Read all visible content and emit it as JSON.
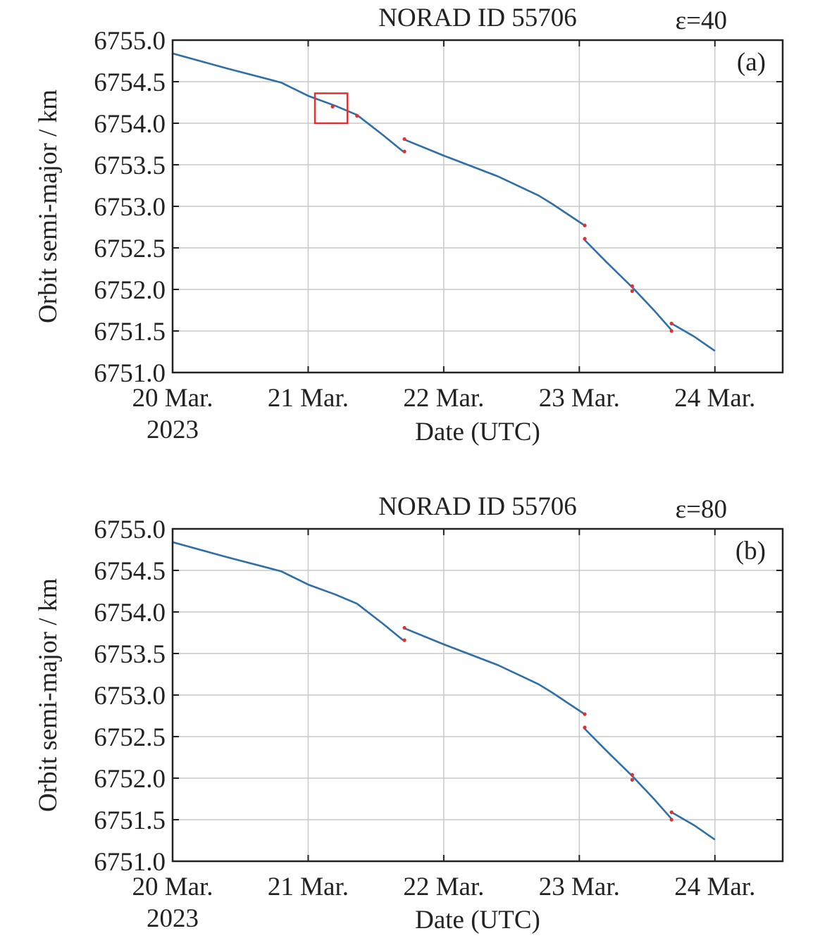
{
  "colors": {
    "series": "#2f6fa7",
    "anomaly": "#e03030",
    "highlight_box": "#e03030",
    "grid": "#c8c8c8",
    "frame": "#222222"
  },
  "chart_data": [
    {
      "type": "line",
      "panel_label": "(a)",
      "title": "NORAD ID 55706",
      "parameter_label": "ε=40",
      "xlabel": "Date (UTC)",
      "ylabel": "Orbit semi-major / km",
      "x_tick_labels": [
        {
          "line1": "20 Mar.",
          "line2": "2023"
        },
        {
          "line1": "21 Mar.",
          "line2": ""
        },
        {
          "line1": "22 Mar.",
          "line2": ""
        },
        {
          "line1": "23 Mar.",
          "line2": ""
        },
        {
          "line1": "24 Mar.",
          "line2": ""
        }
      ],
      "x_ticks_days": [
        0,
        1,
        2,
        3,
        4
      ],
      "xlim_days": [
        0,
        4.5
      ],
      "y_tick_labels": [
        "6751.0",
        "6751.5",
        "6752.0",
        "6752.5",
        "6753.0",
        "6753.5",
        "6754.0",
        "6754.5",
        "6755.0"
      ],
      "y_ticks": [
        6751.0,
        6751.5,
        6752.0,
        6752.5,
        6753.0,
        6753.5,
        6754.0,
        6754.5,
        6755.0
      ],
      "ylim": [
        6751.0,
        6755.0
      ],
      "grid": true,
      "series": [
        {
          "segments": [
            [
              [
                0.0,
                6754.84
              ],
              [
                0.4,
                6754.66
              ],
              [
                0.8,
                6754.49
              ],
              [
                1.0,
                6754.33
              ],
              [
                1.2,
                6754.21
              ],
              [
                1.36,
                6754.1
              ]
            ],
            [
              [
                1.36,
                6754.1
              ],
              [
                1.55,
                6753.86
              ],
              [
                1.7,
                6753.66
              ]
            ],
            [
              [
                1.7,
                6753.81
              ],
              [
                2.0,
                6753.61
              ],
              [
                2.4,
                6753.36
              ],
              [
                2.7,
                6753.13
              ],
              [
                2.8,
                6753.03
              ],
              [
                3.03,
                6752.78
              ]
            ],
            [
              [
                3.03,
                6752.61
              ],
              [
                3.2,
                6752.33
              ],
              [
                3.4,
                6752.01
              ]
            ],
            [
              [
                3.4,
                6752.01
              ],
              [
                3.55,
                6751.75
              ],
              [
                3.68,
                6751.51
              ]
            ],
            [
              [
                3.68,
                6751.59
              ],
              [
                3.85,
                6751.43
              ],
              [
                4.0,
                6751.26
              ]
            ]
          ]
        }
      ],
      "anomaly_points": [
        [
          1.18,
          6754.2
        ],
        [
          1.36,
          6754.09
        ],
        [
          1.71,
          6753.81
        ],
        [
          1.71,
          6753.66
        ],
        [
          3.04,
          6752.77
        ],
        [
          3.04,
          6752.61
        ],
        [
          3.39,
          6752.04
        ],
        [
          3.39,
          6751.98
        ],
        [
          3.68,
          6751.59
        ],
        [
          3.68,
          6751.5
        ]
      ],
      "highlight_box": {
        "x": [
          1.05,
          1.29
        ],
        "y": [
          6754.0,
          6754.36
        ]
      }
    },
    {
      "type": "line",
      "panel_label": "(b)",
      "title": "NORAD ID 55706",
      "parameter_label": "ε=80",
      "xlabel": "Date (UTC)",
      "ylabel": "Orbit semi-major / km",
      "x_tick_labels": [
        {
          "line1": "20 Mar.",
          "line2": "2023"
        },
        {
          "line1": "21 Mar.",
          "line2": ""
        },
        {
          "line1": "22 Mar.",
          "line2": ""
        },
        {
          "line1": "23 Mar.",
          "line2": ""
        },
        {
          "line1": "24 Mar.",
          "line2": ""
        }
      ],
      "x_ticks_days": [
        0,
        1,
        2,
        3,
        4
      ],
      "xlim_days": [
        0,
        4.5
      ],
      "y_tick_labels": [
        "6751.0",
        "6751.5",
        "6752.0",
        "6752.5",
        "6753.0",
        "6753.5",
        "6754.0",
        "6754.5",
        "6755.0"
      ],
      "y_ticks": [
        6751.0,
        6751.5,
        6752.0,
        6752.5,
        6753.0,
        6753.5,
        6754.0,
        6754.5,
        6755.0
      ],
      "ylim": [
        6751.0,
        6755.0
      ],
      "grid": true,
      "series": [
        {
          "segments": [
            [
              [
                0.0,
                6754.84
              ],
              [
                0.4,
                6754.66
              ],
              [
                0.8,
                6754.49
              ],
              [
                1.0,
                6754.33
              ],
              [
                1.2,
                6754.21
              ],
              [
                1.36,
                6754.1
              ]
            ],
            [
              [
                1.36,
                6754.1
              ],
              [
                1.55,
                6753.86
              ],
              [
                1.7,
                6753.66
              ]
            ],
            [
              [
                1.7,
                6753.81
              ],
              [
                2.0,
                6753.61
              ],
              [
                2.4,
                6753.36
              ],
              [
                2.7,
                6753.13
              ],
              [
                2.8,
                6753.03
              ],
              [
                3.03,
                6752.78
              ]
            ],
            [
              [
                3.03,
                6752.61
              ],
              [
                3.2,
                6752.33
              ],
              [
                3.4,
                6752.01
              ]
            ],
            [
              [
                3.4,
                6752.01
              ],
              [
                3.55,
                6751.75
              ],
              [
                3.68,
                6751.51
              ]
            ],
            [
              [
                3.68,
                6751.59
              ],
              [
                3.85,
                6751.43
              ],
              [
                4.0,
                6751.26
              ]
            ]
          ]
        }
      ],
      "anomaly_points": [
        [
          1.71,
          6753.81
        ],
        [
          1.71,
          6753.66
        ],
        [
          3.04,
          6752.77
        ],
        [
          3.04,
          6752.61
        ],
        [
          3.39,
          6752.04
        ],
        [
          3.39,
          6751.98
        ],
        [
          3.68,
          6751.59
        ],
        [
          3.68,
          6751.5
        ]
      ],
      "highlight_box": null
    }
  ]
}
